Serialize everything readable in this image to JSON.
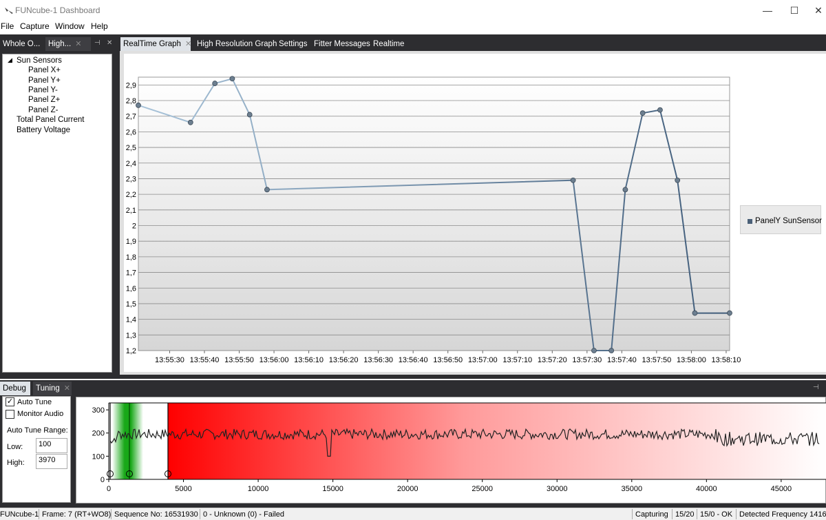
{
  "window": {
    "title": "FUNcube-1 Dashboard",
    "minimize": "—",
    "maximize": "☐",
    "close": "✕"
  },
  "menu": [
    "File",
    "Capture",
    "Window",
    "Help"
  ],
  "left_tabs": [
    {
      "label": "Whole O..."
    },
    {
      "label": "High..."
    }
  ],
  "left_tab_icons": {
    "pin": "⊣",
    "close": "✕"
  },
  "main_tabs": [
    {
      "label": "RealTime Graph"
    },
    {
      "label": "High Resolution Graph"
    },
    {
      "label": "Settings"
    },
    {
      "label": "Fitter Messages"
    },
    {
      "label": "Realtime"
    }
  ],
  "tree": {
    "root": "Sun Sensors",
    "children": [
      "Panel X+",
      "Panel Y+",
      "Panel Y-",
      "Panel Z+",
      "Panel Z-"
    ],
    "siblings": [
      "Total Panel Current",
      "Battery Voltage"
    ]
  },
  "chart_data": {
    "type": "line",
    "series": [
      {
        "name": "PanelY SunSensor",
        "x": [
          "13:55:21",
          "13:55:36",
          "13:55:43",
          "13:55:48",
          "13:55:53",
          "13:55:58",
          "13:57:26",
          "13:57:32",
          "13:57:37",
          "13:57:41",
          "13:57:46",
          "13:57:51",
          "13:57:56",
          "13:58:01",
          "13:58:11"
        ],
        "y": [
          2.77,
          2.66,
          2.91,
          2.94,
          2.71,
          2.23,
          2.29,
          1.2,
          1.2,
          2.23,
          2.72,
          2.74,
          2.29,
          1.44,
          1.44
        ]
      }
    ],
    "ylim": [
      1.2,
      2.95
    ],
    "yticks": [
      "1,2",
      "1,3",
      "1,4",
      "1,5",
      "1,6",
      "1,7",
      "1,8",
      "1,9",
      "2",
      "2,1",
      "2,2",
      "2,3",
      "2,4",
      "2,5",
      "2,6",
      "2,7",
      "2,8",
      "2,9"
    ],
    "xticks": [
      "13:55:30",
      "13:55:40",
      "13:55:50",
      "13:56:00",
      "13:56:10",
      "13:56:20",
      "13:56:30",
      "13:56:40",
      "13:56:50",
      "13:57:00",
      "13:57:10",
      "13:57:20",
      "13:57:30",
      "13:57:40",
      "13:57:50",
      "13:58:00",
      "13:58:10"
    ],
    "legend": "PanelY SunSensor",
    "legend_position": "right",
    "grid": true,
    "colors": {
      "line": "#5a7390",
      "point": "#6d7f90"
    }
  },
  "lower_tabs": [
    {
      "label": "Debug"
    },
    {
      "label": "Tuning"
    }
  ],
  "debug": {
    "auto_tune": {
      "label": "Auto Tune",
      "checked": true
    },
    "monitor_audio": {
      "label": "Monitor Audio",
      "checked": false
    },
    "range_label": "Auto Tune Range:",
    "low_label": "Low:",
    "low_value": "100",
    "high_label": "High:",
    "high_value": "3970"
  },
  "spectrum": {
    "yticks": [
      "0",
      "100",
      "200",
      "300"
    ],
    "xticks": [
      "0",
      "5000",
      "10000",
      "15000",
      "20000",
      "25000",
      "30000",
      "35000",
      "40000",
      "45000"
    ],
    "colors": {
      "tune_band": "#1faa1f",
      "signal": "#ff0000"
    }
  },
  "status": {
    "app": "FUNcube-1",
    "frame": "Frame:  7 (RT+WO8)",
    "sequence": "Sequence No:  16531930",
    "decode": "0 - Unknown (0) - Failed",
    "capturing": "Capturing",
    "count1": "15/20",
    "count2": "15/0 - OK",
    "frequency": "Detected Frequency  1416"
  }
}
